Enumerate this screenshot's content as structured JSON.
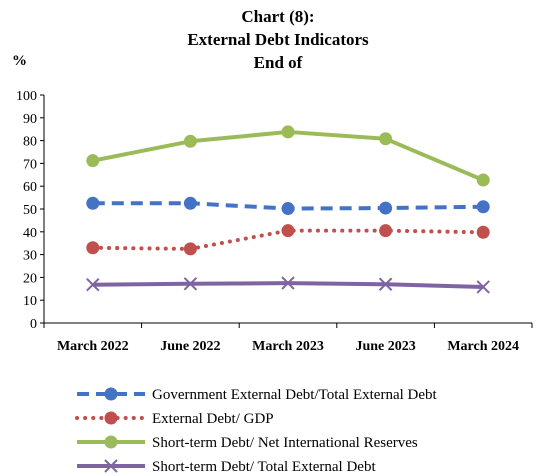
{
  "chart_data": {
    "type": "line",
    "title_lines": [
      "Chart (8):",
      "External Debt Indicators",
      "End of"
    ],
    "ylabel": "%",
    "ylim": [
      0,
      100
    ],
    "yticks": [
      0,
      10,
      20,
      30,
      40,
      50,
      60,
      70,
      80,
      90,
      100
    ],
    "categories": [
      "March 2022",
      "June 2022",
      "March 2023",
      "June 2023",
      "March 2024"
    ],
    "grid": false,
    "legend_position": "bottom",
    "series": [
      {
        "name": "Government External Debt/Total External Debt",
        "values": [
          52.5,
          52.5,
          50.2,
          50.4,
          51.0
        ],
        "color": "#4472C4",
        "dash": "dashed",
        "marker": "circle"
      },
      {
        "name": "External Debt/ GDP",
        "values": [
          33.0,
          32.5,
          40.5,
          40.5,
          39.8
        ],
        "color": "#C0504D",
        "dash": "dotted",
        "marker": "circle"
      },
      {
        "name": "Short-term Debt/ Net International Reserves",
        "values": [
          71.2,
          79.7,
          83.8,
          80.8,
          62.7
        ],
        "color": "#9BBB59",
        "dash": "solid",
        "marker": "circle"
      },
      {
        "name": "Short-term Debt/ Total External Debt",
        "values": [
          16.8,
          17.2,
          17.5,
          17.0,
          15.8
        ],
        "color": "#8064A2",
        "dash": "solid",
        "marker": "x"
      }
    ]
  }
}
